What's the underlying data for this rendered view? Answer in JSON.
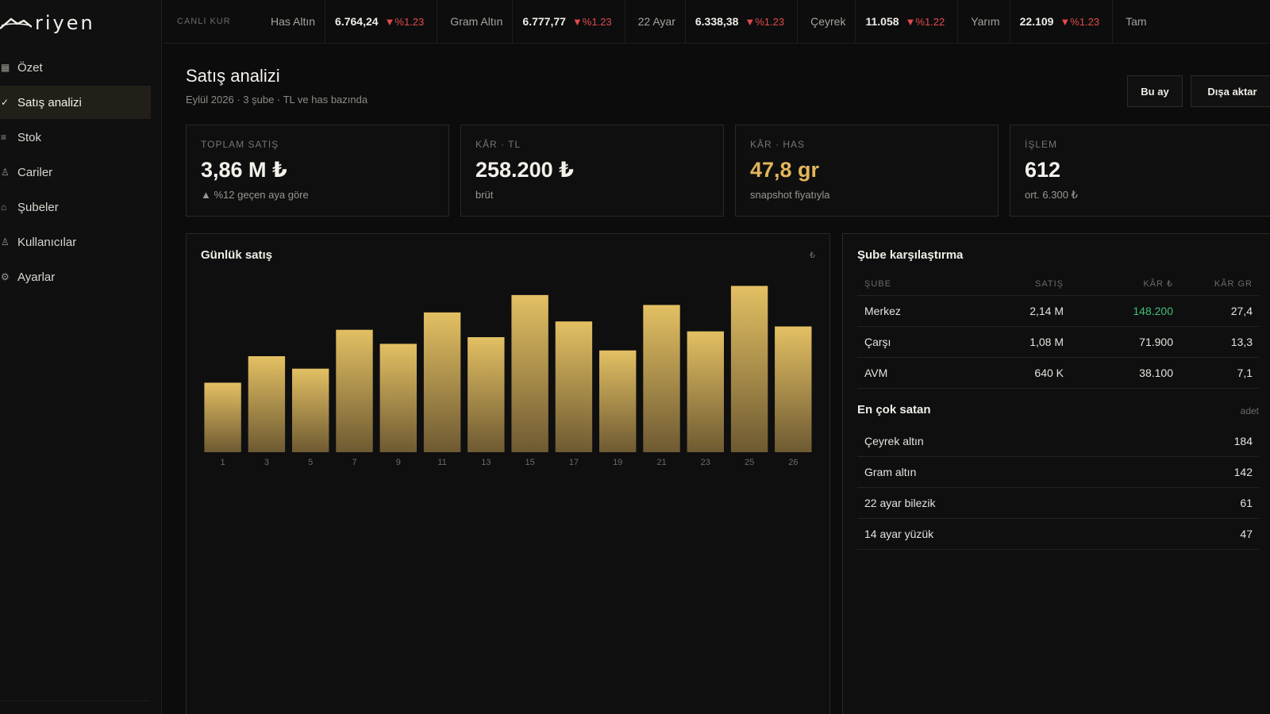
{
  "app": {
    "logo_text": "riyen"
  },
  "sidebar": {
    "items": [
      {
        "label": "Özet",
        "icon": "grid-icon"
      },
      {
        "label": "Satış analizi",
        "icon": "check-icon"
      },
      {
        "label": "Stok",
        "icon": "list-icon"
      },
      {
        "label": "Cariler",
        "icon": "user-icon"
      },
      {
        "label": "Şubeler",
        "icon": "building-icon"
      },
      {
        "label": "Kullanıcılar",
        "icon": "users-icon"
      },
      {
        "label": "Ayarlar",
        "icon": "gear-icon"
      }
    ],
    "active_index": 1
  },
  "ticker": {
    "label": "CANLI KUR",
    "items": [
      {
        "name": "Has Altın",
        "value": "6.764,24",
        "change": "▼%1.23"
      },
      {
        "name": "Gram Altın",
        "value": "6.777,77",
        "change": "▼%1.23"
      },
      {
        "name": "22 Ayar",
        "value": "6.338,38",
        "change": "▼%1.23"
      },
      {
        "name": "Çeyrek",
        "value": "11.058",
        "change": "▼%1.22"
      },
      {
        "name": "Yarım",
        "value": "22.109",
        "change": "▼%1.23"
      },
      {
        "name": "Tam",
        "value": "",
        "change": ""
      }
    ]
  },
  "header": {
    "title": "Satış analizi",
    "subtitle": "Eylül 2026 · 3 şube · TL ve has bazında",
    "period_button": "Bu ay",
    "export_button": "Dışa aktar"
  },
  "stats": [
    {
      "label": "TOPLAM SATIŞ",
      "value": "3,86 M ₺",
      "note": "▲ %12 geçen aya göre"
    },
    {
      "label": "KÂR · TL",
      "value": "258.200 ₺",
      "note": "brüt"
    },
    {
      "label": "KÂR · HAS",
      "value": "47,8 gr",
      "note": "snapshot fiyatıyla"
    },
    {
      "label": "İŞLEM",
      "value": "612",
      "note": "ort. 6.300 ₺"
    }
  ],
  "colors": {
    "accent": "#e3b55a",
    "negative": "#e24b4b",
    "positive": "#3fbf76"
  },
  "chart_data": {
    "type": "bar",
    "title": "Günlük satış",
    "unit": "₺",
    "categories": [
      "1",
      "3",
      "5",
      "7",
      "9",
      "11",
      "13",
      "15",
      "17",
      "19",
      "21",
      "23",
      "25",
      "26"
    ],
    "values": [
      84,
      116,
      101,
      148,
      131,
      169,
      139,
      190,
      158,
      123,
      178,
      146,
      201,
      152
    ],
    "ylim": [
      0,
      210
    ],
    "grid": false
  },
  "branch": {
    "title": "Şube karşılaştırma",
    "headers": [
      "ŞUBE",
      "SATIŞ",
      "KÂR ₺",
      "KÂR GR"
    ],
    "rows": [
      {
        "name": "Merkez",
        "sales": "2,14 M",
        "profit": "148.200",
        "profit_gr": "27,4"
      },
      {
        "name": "Çarşı",
        "sales": "1,08 M",
        "profit": "71.900",
        "profit_gr": "13,3"
      },
      {
        "name": "AVM",
        "sales": "640 K",
        "profit": "38.100",
        "profit_gr": "7,1"
      }
    ]
  },
  "best_sellers": {
    "title": "En çok satan",
    "unit": "adet",
    "items": [
      {
        "name": "Çeyrek altın",
        "count": "184"
      },
      {
        "name": "Gram altın",
        "count": "142"
      },
      {
        "name": "22 ayar bilezik",
        "count": "61"
      },
      {
        "name": "14 ayar yüzük",
        "count": "47"
      }
    ]
  }
}
